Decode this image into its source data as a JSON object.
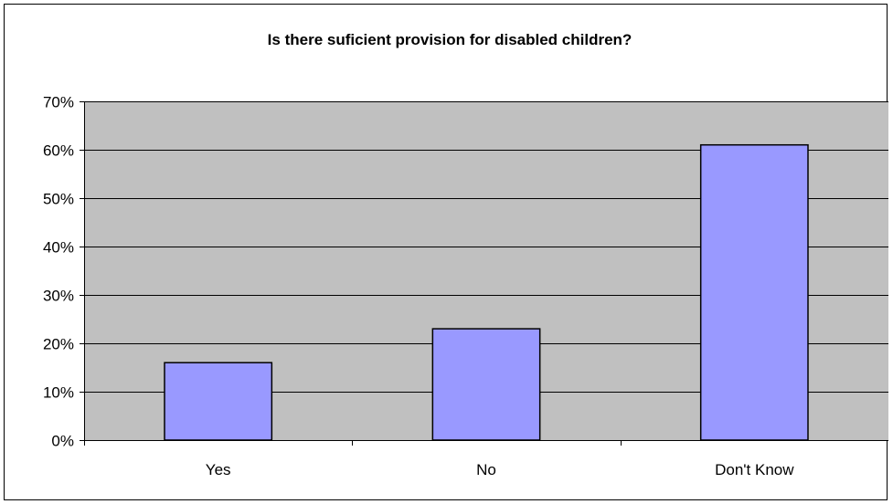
{
  "chart_data": {
    "type": "bar",
    "title": "Is there suficient provision for disabled children?",
    "categories": [
      "Yes",
      "No",
      "Don't Know"
    ],
    "values": [
      0.16,
      0.23,
      0.61
    ],
    "ylim": [
      0,
      0.7
    ],
    "yticks": [
      0,
      0.1,
      0.2,
      0.3,
      0.4,
      0.5,
      0.6,
      0.7
    ],
    "ytick_labels": [
      "0%",
      "10%",
      "20%",
      "30%",
      "40%",
      "50%",
      "60%",
      "70%"
    ],
    "grid": true,
    "legend": "none",
    "colors": {
      "plot_background": "#c0c0c0",
      "bar_fill": "#9999ff",
      "bar_stroke": "#000000",
      "gridline": "#000000"
    }
  }
}
